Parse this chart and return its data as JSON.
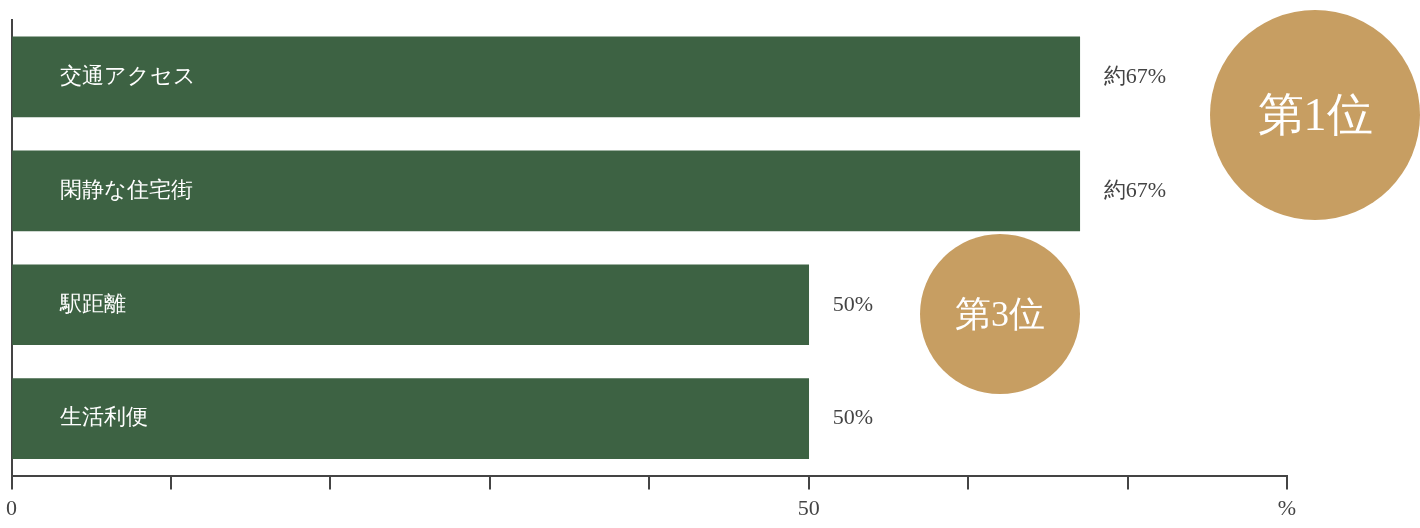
{
  "chart_data": {
    "type": "bar",
    "orientation": "horizontal",
    "categories": [
      "交通アクセス",
      "閑静な住宅街",
      "駅距離",
      "生活利便"
    ],
    "values": [
      67,
      67,
      50,
      50
    ],
    "color": "#3d6243",
    "value_labels": [
      "約67%",
      "約67%",
      "50%",
      "50%"
    ],
    "xlim": [
      0,
      80
    ],
    "xticks": [
      0,
      {
        "value": 10,
        "label": null
      },
      {
        "value": 20,
        "label": null
      },
      {
        "value": 30,
        "label": null
      },
      {
        "value": 40,
        "label": null
      },
      50,
      {
        "value": 60,
        "label": null
      },
      {
        "value": 70,
        "label": null
      },
      {
        "value": 80,
        "label": "%"
      }
    ],
    "annotations": [
      "第1位",
      "第3位"
    ],
    "grid": false,
    "legend": false
  }
}
